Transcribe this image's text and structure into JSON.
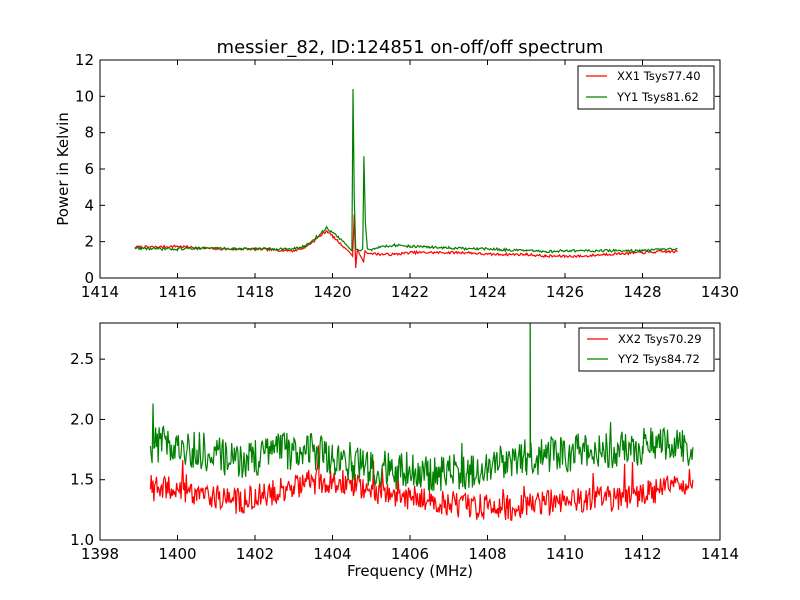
{
  "title": "messier_82, ID:124851 on-off/off spectrum",
  "colors": {
    "xx": "#ff0000",
    "yy": "#008000",
    "axes": "#000000"
  },
  "chart_data": [
    {
      "type": "line",
      "ylabel": "Power in Kelvin",
      "xlabel": "",
      "xlim": [
        1414,
        1430
      ],
      "ylim": [
        0,
        12
      ],
      "xticks": [
        "1414",
        "1416",
        "1418",
        "1420",
        "1422",
        "1424",
        "1426",
        "1428",
        "1430"
      ],
      "yticks": [
        "0",
        "2",
        "4",
        "6",
        "8",
        "10",
        "12"
      ],
      "grid": false,
      "legend": "top-right",
      "series": [
        {
          "name": "XX1 Tsys77.40",
          "color": "#ff0000",
          "x": [
            1414.9,
            1415.5,
            1416,
            1416.5,
            1417,
            1417.5,
            1418,
            1418.5,
            1419,
            1419.3,
            1419.5,
            1419.7,
            1419.85,
            1420,
            1420.2,
            1420.35,
            1420.45,
            1420.52,
            1420.56,
            1420.6,
            1420.64,
            1420.7,
            1420.78,
            1420.8,
            1420.84,
            1420.9,
            1421,
            1421.3,
            1421.6,
            1422,
            1422.5,
            1423,
            1423.5,
            1424,
            1424.5,
            1425,
            1425.5,
            1426,
            1426.5,
            1427,
            1427.5,
            1428,
            1428.5,
            1428.9
          ],
          "y": [
            1.7,
            1.7,
            1.75,
            1.65,
            1.6,
            1.6,
            1.6,
            1.55,
            1.5,
            1.7,
            2.0,
            2.35,
            2.6,
            2.3,
            1.9,
            1.6,
            1.4,
            1.2,
            3.5,
            0.55,
            1.6,
            1.3,
            1.0,
            0.85,
            1.5,
            1.35,
            1.35,
            1.3,
            1.3,
            1.4,
            1.4,
            1.4,
            1.4,
            1.3,
            1.3,
            1.3,
            1.2,
            1.2,
            1.2,
            1.3,
            1.35,
            1.4,
            1.45,
            1.45
          ]
        },
        {
          "name": "YY1 Tsys81.62",
          "color": "#008000",
          "x": [
            1414.9,
            1415.5,
            1416,
            1416.5,
            1417,
            1417.5,
            1418,
            1418.5,
            1419,
            1419.3,
            1419.5,
            1419.7,
            1419.85,
            1420,
            1420.2,
            1420.35,
            1420.45,
            1420.5,
            1420.53,
            1420.56,
            1420.6,
            1420.66,
            1420.72,
            1420.78,
            1420.81,
            1420.85,
            1420.9,
            1421,
            1421.3,
            1421.6,
            1422,
            1422.5,
            1423,
            1423.5,
            1424,
            1424.5,
            1425,
            1425.5,
            1426,
            1426.5,
            1427,
            1427.5,
            1428,
            1428.5,
            1428.9
          ],
          "y": [
            1.65,
            1.6,
            1.6,
            1.65,
            1.65,
            1.6,
            1.6,
            1.6,
            1.6,
            1.75,
            2.1,
            2.45,
            2.75,
            2.5,
            2.15,
            1.85,
            1.6,
            1.5,
            10.4,
            4.5,
            1.6,
            1.55,
            1.5,
            1.6,
            6.7,
            3.0,
            1.6,
            1.55,
            1.75,
            1.8,
            1.75,
            1.7,
            1.65,
            1.6,
            1.6,
            1.55,
            1.5,
            1.45,
            1.5,
            1.5,
            1.5,
            1.5,
            1.5,
            1.55,
            1.6
          ]
        }
      ]
    },
    {
      "type": "line",
      "xlabel": "Frequency (MHz)",
      "ylabel": "",
      "xlim": [
        1398,
        1414
      ],
      "ylim": [
        1.0,
        2.8
      ],
      "xticks": [
        "1398",
        "1400",
        "1402",
        "1404",
        "1406",
        "1408",
        "1410",
        "1412",
        "1414"
      ],
      "yticks": [
        "1.0",
        "1.5",
        "2.0",
        "2.5"
      ],
      "grid": false,
      "legend": "top-right",
      "series": [
        {
          "name": "XX2 Tsys70.29",
          "color": "#ff0000",
          "x": [
            1399.3,
            1400,
            1400.5,
            1401,
            1401.5,
            1402,
            1402.5,
            1403,
            1403.5,
            1404,
            1404.5,
            1405,
            1405.5,
            1406,
            1406.5,
            1407,
            1407.5,
            1408,
            1408.5,
            1409,
            1409.5,
            1410,
            1410.5,
            1411,
            1411.5,
            1412,
            1412.5,
            1413,
            1413.3
          ],
          "y": [
            1.42,
            1.42,
            1.4,
            1.37,
            1.32,
            1.35,
            1.4,
            1.45,
            1.48,
            1.5,
            1.47,
            1.42,
            1.38,
            1.35,
            1.33,
            1.3,
            1.28,
            1.27,
            1.26,
            1.28,
            1.3,
            1.33,
            1.33,
            1.34,
            1.35,
            1.38,
            1.43,
            1.47,
            1.5
          ]
        },
        {
          "name": "YY2 Tsys84.72",
          "color": "#008000",
          "x": [
            1399.3,
            1400,
            1400.5,
            1401,
            1401.5,
            1402,
            1402.5,
            1403,
            1403.5,
            1404,
            1404.5,
            1405,
            1405.5,
            1406,
            1406.5,
            1407,
            1407.5,
            1408,
            1408.5,
            1409,
            1409.5,
            1410,
            1410.5,
            1411,
            1411.5,
            1412,
            1412.5,
            1413,
            1413.3
          ],
          "y": [
            1.78,
            1.78,
            1.75,
            1.7,
            1.67,
            1.68,
            1.72,
            1.74,
            1.73,
            1.7,
            1.65,
            1.6,
            1.58,
            1.57,
            1.56,
            1.57,
            1.58,
            1.6,
            1.65,
            1.68,
            1.7,
            1.72,
            1.73,
            1.75,
            1.76,
            1.78,
            1.79,
            1.78,
            1.77
          ],
          "spike": {
            "x": 1409.1,
            "y": 2.8
          }
        }
      ]
    }
  ]
}
